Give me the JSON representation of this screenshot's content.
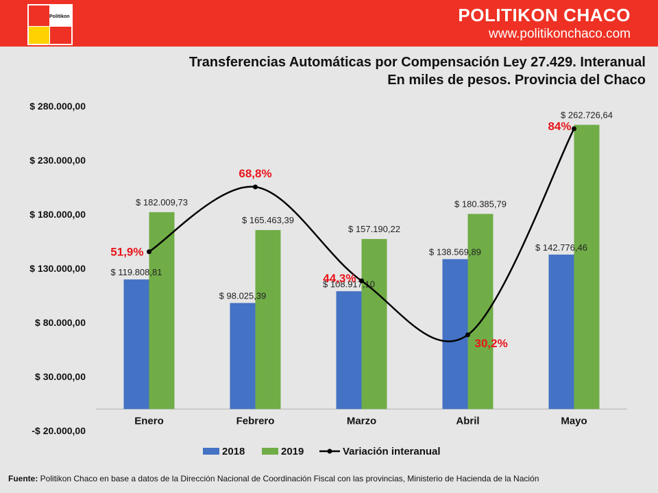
{
  "header": {
    "logo_text": "Politikon",
    "brand_name": "POLITIKON CHACO",
    "brand_url": "www.politikonchaco.com"
  },
  "title": {
    "line1": "Transferencias Automáticas por Compensación Ley 27.429. Interanual",
    "line2": "En miles de pesos. Provincia del Chaco"
  },
  "colors": {
    "header_bg": "#ee3124",
    "series_2018": "#4472c4",
    "series_2019": "#70ad47",
    "variation_line": "#000000",
    "variation_label": "#e8141a"
  },
  "chart_data": {
    "type": "bar",
    "categories": [
      "Enero",
      "Febrero",
      "Marzo",
      "Abril",
      "Mayo"
    ],
    "series": [
      {
        "name": "2018",
        "values": [
          119808.81,
          98025.39,
          108917.1,
          138569.89,
          142776.46
        ],
        "labels": [
          "$ 119.808,81",
          "$ 98.025,39",
          "$ 108.917,10",
          "$ 138.569,89",
          "$ 142.776,46"
        ]
      },
      {
        "name": "2019",
        "values": [
          182009.73,
          165463.39,
          157190.22,
          180385.79,
          262726.64
        ],
        "labels": [
          "$ 182.009,73",
          "$ 165.463,39",
          "$ 157.190,22",
          "$ 180.385,79",
          "$ 262.726,64"
        ]
      }
    ],
    "line_series": {
      "name": "Variación interanual",
      "values": [
        51.9,
        68.8,
        44.3,
        30.2,
        84
      ],
      "labels": [
        "51,9%",
        "68,8%",
        "44,3%",
        "30,2%",
        "84%"
      ]
    },
    "y_ticks": [
      280000,
      230000,
      180000,
      130000,
      80000,
      30000,
      -20000
    ],
    "y_tick_labels": [
      "$ 280.000,00",
      "$ 230.000,00",
      "$ 180.000,00",
      "$ 130.000,00",
      "$ 80.000,00",
      "$ 30.000,00",
      "-$ 20.000,00"
    ],
    "ylim": [
      -20000,
      280000
    ],
    "grid": false,
    "legend_position": "bottom"
  },
  "footer": {
    "source_label": "Fuente:",
    "source_text": " Politikon Chaco en base a datos de la Dirección Nacional de Coordinación  Fiscal con las provincias,  Ministerio de Hacienda de la Nación"
  }
}
